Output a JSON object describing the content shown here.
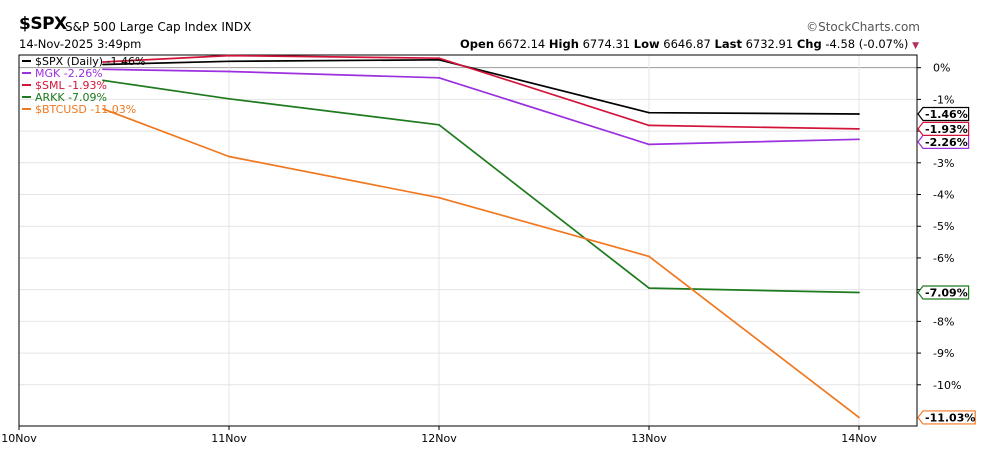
{
  "header": {
    "symbol": "$SPX",
    "name": "S&P 500 Large Cap Index",
    "exchange": "INDX",
    "datetime": "14-Nov-2025 3:49pm",
    "logo": "©StockCharts.com",
    "open_label": "Open",
    "open": "6672.14",
    "high_label": "High",
    "high": "6774.31",
    "low_label": "Low",
    "low": "6646.87",
    "last_label": "Last",
    "last": "6732.91",
    "chg_label": "Chg",
    "chg": "-4.58 (-0.07%)",
    "chg_arrow": "▼"
  },
  "chart_data": {
    "type": "line",
    "x": [
      "10Nov",
      "11Nov",
      "12Nov",
      "13Nov",
      "14Nov"
    ],
    "ylim": [
      -11.3,
      0.4
    ],
    "yticks": [
      0,
      -1,
      -2,
      -3,
      -4,
      -5,
      -6,
      -7,
      -8,
      -9,
      -10
    ],
    "ytick_labels": [
      "0%",
      "-1%",
      "-2%",
      "-3%",
      "-4%",
      "-5%",
      "-6%",
      "-7%",
      "-8%",
      "-9%",
      "-10%"
    ],
    "grid": true,
    "legend_position": "top-left",
    "series": [
      {
        "name": "$SPX (Daily) -1.46%",
        "tag": "-1.46%",
        "color": "#000000",
        "points": [
          [
            0.4,
            0.1
          ],
          [
            1,
            0.2
          ],
          [
            2,
            0.25
          ],
          [
            3,
            -1.42
          ],
          [
            4,
            -1.46
          ]
        ]
      },
      {
        "name": "MGK -2.26%",
        "tag": "-2.26%",
        "color": "#9b30e0",
        "points": [
          [
            0.4,
            -0.05
          ],
          [
            1,
            -0.12
          ],
          [
            2,
            -0.32
          ],
          [
            3,
            -2.42
          ],
          [
            4,
            -2.26
          ]
        ]
      },
      {
        "name": "$SML -1.93%",
        "tag": "-1.93%",
        "color": "#d2143a",
        "points": [
          [
            0.4,
            0.18
          ],
          [
            1,
            0.38
          ],
          [
            2,
            0.3
          ],
          [
            3,
            -1.82
          ],
          [
            4,
            -1.93
          ]
        ]
      },
      {
        "name": "ARKK -7.09%",
        "tag": "-7.09%",
        "color": "#1e7a1e",
        "points": [
          [
            0.4,
            -0.4
          ],
          [
            1,
            -0.98
          ],
          [
            2,
            -1.8
          ],
          [
            3,
            -6.95
          ],
          [
            4,
            -7.09
          ]
        ]
      },
      {
        "name": "$BTCUSD -11.03%",
        "tag": "-11.03%",
        "color": "#f07820",
        "points": [
          [
            0.4,
            -1.3
          ],
          [
            1,
            -2.8
          ],
          [
            2,
            -4.1
          ],
          [
            3,
            -5.95
          ],
          [
            4,
            -11.03
          ]
        ]
      }
    ]
  }
}
